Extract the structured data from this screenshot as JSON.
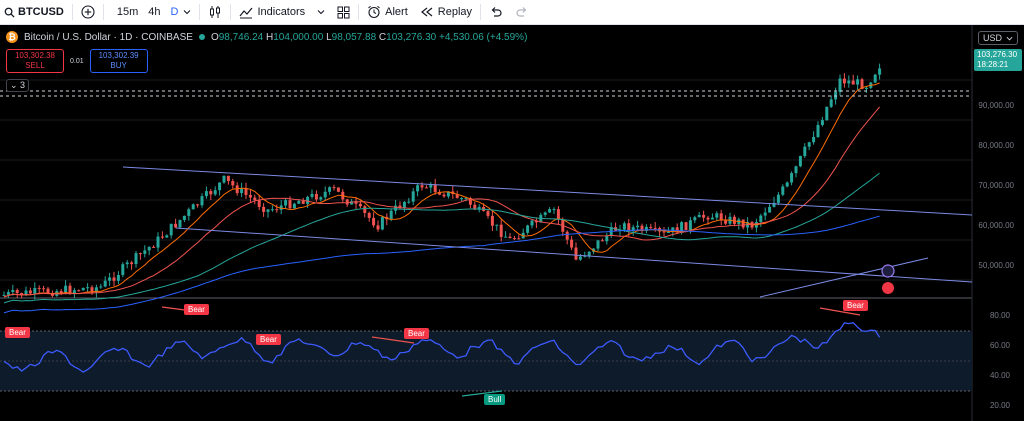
{
  "toolbar": {
    "symbol": "BTCUSD",
    "intervals": [
      "15m",
      "4h",
      "D"
    ],
    "active_interval": "D",
    "indicators_label": "Indicators",
    "alert_label": "Alert",
    "replay_label": "Replay"
  },
  "legend": {
    "title": "Bitcoin / U.S. Dollar · 1D · COINBASE",
    "o_label": "O",
    "o": "98,746.24",
    "h_label": "H",
    "h": "104,000.00",
    "l_label": "L",
    "l": "98,057.88",
    "c_label": "C",
    "c": "103,276.30",
    "change": "+4,530.06 (+4.59%)"
  },
  "trade": {
    "sell_price": "103,302.38",
    "sell_label": "SELL",
    "spread": "0.01",
    "buy_price": "103,302.39",
    "buy_label": "BUY"
  },
  "collapse_count": "3",
  "currency": "USD",
  "price_tag": {
    "price": "103,276.30",
    "countdown": "18:28:21"
  },
  "price_axis": [
    "90,000.00",
    "80,000.00",
    "70,000.00",
    "60,000.00",
    "50,000.00"
  ],
  "osc_axis": [
    "80.00",
    "60.00",
    "40.00",
    "20.00"
  ],
  "signals": [
    {
      "label": "Bear",
      "kind": "bear"
    },
    {
      "label": "Bear",
      "kind": "bear"
    },
    {
      "label": "Bear",
      "kind": "bear"
    },
    {
      "label": "Bear",
      "kind": "bear"
    },
    {
      "label": "Bear",
      "kind": "bear"
    },
    {
      "label": "Bull",
      "kind": "bull"
    }
  ],
  "colors": {
    "up": "#26a69a",
    "down": "#ef5350",
    "ma_fast": "#ff6d00",
    "ma_mid": "#ef5350",
    "ma_slow": "#26a69a",
    "ma_long": "#2962ff",
    "channel": "#7b8ae6",
    "rsi": "#3d5afe",
    "accent": "#2962ff"
  }
}
